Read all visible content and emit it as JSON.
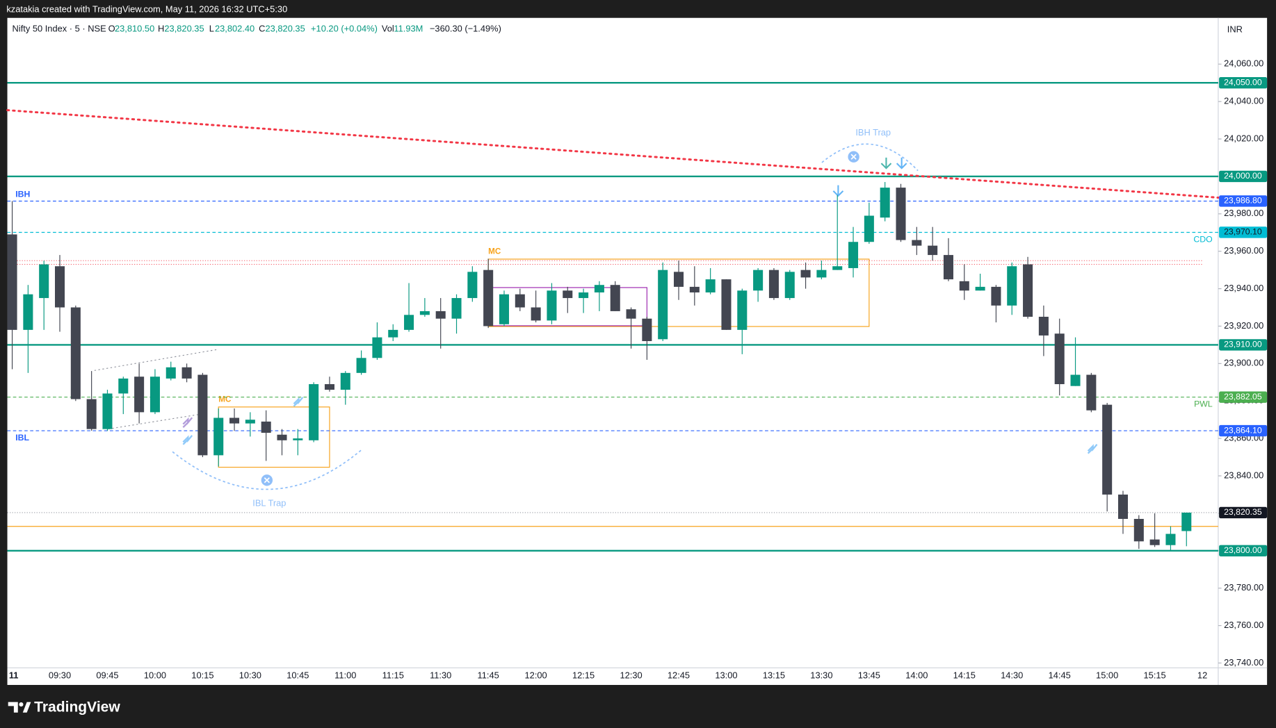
{
  "header": {
    "credit": "kzatakia created with TradingView.com, May 11, 2026 16:32 UTC+5:30"
  },
  "legend": {
    "symbol": "Nifty 50 Index · 5 · NSE",
    "fields": [
      {
        "key": "O",
        "value": "23,810.50"
      },
      {
        "key": "H",
        "value": "23,820.35"
      },
      {
        "key": "L",
        "value": "23,802.40"
      },
      {
        "key": "C",
        "value": "23,820.35"
      }
    ],
    "change": "+10.20 (+0.04%)",
    "volume_key": "Vol",
    "volume": "11.93M",
    "day_change": "−360.30 (−1.49%)"
  },
  "annotations": [
    {
      "text": "IBL Trap"
    },
    {
      "text": "IBH Trap"
    }
  ],
  "footer": {
    "brand": "TradingView"
  },
  "chart_data": {
    "type": "candlestick",
    "currency": "INR",
    "up_color": "#089981",
    "down_color": "#434651",
    "categories": [
      "11",
      null,
      null,
      "09:30",
      null,
      null,
      "09:45",
      null,
      null,
      "10:00",
      null,
      null,
      "10:15",
      null,
      null,
      "10:30",
      null,
      null,
      "10:45",
      null,
      null,
      "11:00",
      null,
      null,
      "11:15",
      null,
      null,
      "11:30",
      null,
      null,
      "11:45",
      null,
      null,
      "12:00",
      null,
      null,
      "12:15",
      null,
      null,
      "12:30",
      null,
      null,
      "12:45",
      null,
      null,
      "13:00",
      null,
      null,
      "13:15",
      null,
      null,
      "13:30",
      null,
      null,
      "13:45",
      null,
      null,
      "14:00",
      null,
      null,
      "14:15",
      null,
      null,
      "14:30",
      null,
      null,
      "14:45",
      null,
      null,
      "15:00",
      null,
      null,
      "15:15",
      null,
      null
    ],
    "next_session_label": "12",
    "open": [
      23969,
      23918,
      23935,
      23952,
      23930,
      23881,
      23865,
      23884,
      23893,
      23874,
      23892,
      23898,
      23894,
      23851,
      23871,
      23868,
      23869,
      23862,
      23859,
      23859,
      23889,
      23886,
      23895,
      23903,
      23914,
      23918,
      23926,
      23928,
      23924,
      23935,
      23950,
      23921,
      23937,
      23930,
      23923,
      23939,
      23935,
      23938,
      23942,
      23929,
      23924,
      23913,
      23949,
      23941,
      23938,
      23945,
      23918,
      23939,
      23950,
      23935,
      23950,
      23946,
      23950,
      23951,
      23965,
      23978,
      23994,
      23966,
      23963,
      23958,
      23944,
      23939,
      23941,
      23931,
      23953,
      23925,
      23916,
      23888,
      23894,
      23878,
      23830,
      23817,
      23806,
      23803,
      23810.5
    ],
    "high": [
      23986.8,
      23942,
      23955,
      23958,
      23931,
      23896,
      23886,
      23893,
      23900,
      23897,
      23901,
      23900,
      23895,
      23876,
      23876,
      23874,
      23875,
      23865,
      23865,
      23890,
      23893,
      23896,
      23907,
      23922,
      23921,
      23943,
      23935,
      23935,
      23937,
      23952,
      23956,
      23939,
      23940,
      23939,
      23943,
      23941,
      23940,
      23944,
      23944,
      23930,
      23925,
      23954,
      23955,
      23952,
      23951,
      23945,
      23940,
      23951,
      23951,
      23950,
      23954,
      23955,
      23990,
      23973,
      23986,
      23997,
      23996,
      23973,
      23973,
      23967,
      23953,
      23948,
      23942,
      23954,
      23957,
      23931,
      23924,
      23914,
      23895,
      23879,
      23832,
      23819,
      23820,
      23813,
      23820.35
    ],
    "low": [
      23897,
      23895,
      23918,
      23917,
      23880,
      23864.1,
      23864,
      23873,
      23868,
      23873,
      23891,
      23890,
      23850,
      23845,
      23864,
      23861,
      23848,
      23851,
      23851,
      23858,
      23885,
      23878,
      23894,
      23902,
      23912,
      23917,
      23925,
      23908,
      23916,
      23933,
      23919,
      23920,
      23928,
      23922,
      23921,
      23927,
      23927,
      23928,
      23928,
      23908,
      23902,
      23912,
      23934,
      23931,
      23937,
      23918,
      23905,
      23933,
      23934,
      23934,
      23940,
      23945,
      23950,
      23946,
      23964,
      23976,
      23965,
      23958,
      23955,
      23944,
      23934,
      23939,
      23922,
      23926,
      23924,
      23904,
      23883,
      23888,
      23874,
      23821,
      23809,
      23801,
      23802,
      23800,
      23802.4
    ],
    "close": [
      23918,
      23937,
      23953,
      23930,
      23881,
      23865,
      23884,
      23892,
      23874,
      23893,
      23898,
      23892,
      23851,
      23871,
      23868,
      23870,
      23863,
      23859,
      23860,
      23889,
      23886,
      23895,
      23903,
      23914,
      23918,
      23926,
      23928,
      23924,
      23935,
      23949,
      23920,
      23937,
      23930,
      23923,
      23939,
      23935,
      23938,
      23942,
      23928,
      23924,
      23912,
      23950,
      23941,
      23938,
      23945,
      23918,
      23939,
      23950,
      23935,
      23949,
      23946,
      23950,
      23952,
      23965,
      23979,
      23994,
      23966,
      23963,
      23958,
      23945,
      23939,
      23941,
      23931,
      23952,
      23925,
      23915,
      23889,
      23894,
      23875,
      23830,
      23817,
      23805,
      23803,
      23809,
      23820.35
    ],
    "ylim": [
      23737.4,
      24084.7
    ],
    "yticks": [
      {
        "value": 23740,
        "label": "23,740.00"
      },
      {
        "value": 23760,
        "label": "23,760.00"
      },
      {
        "value": 23780,
        "label": "23,780.00"
      },
      {
        "value": 23800,
        "label": "23,800.00"
      },
      {
        "value": 23820,
        "label": "23,820.00"
      },
      {
        "value": 23840,
        "label": "23,840.00"
      },
      {
        "value": 23860,
        "label": "23,860.00"
      },
      {
        "value": 23880,
        "label": "23,880.00"
      },
      {
        "value": 23900,
        "label": "23,900.00"
      },
      {
        "value": 23920,
        "label": "23,920.00"
      },
      {
        "value": 23940,
        "label": "23,940.00"
      },
      {
        "value": 23960,
        "label": "23,960.00"
      },
      {
        "value": 23980,
        "label": "23,980.00"
      },
      {
        "value": 24000,
        "label": "24,000.00"
      },
      {
        "value": 24020,
        "label": "24,020.00"
      },
      {
        "value": 24040,
        "label": "24,040.00"
      },
      {
        "value": 24060,
        "label": "24,060.00"
      }
    ],
    "grid": false,
    "levels": [
      {
        "value": 24050,
        "value_label": "24,050.00",
        "color": "#089981",
        "style": "solid"
      },
      {
        "value": 24000,
        "value_label": "24,000.00",
        "color": "#089981",
        "style": "solid"
      },
      {
        "value": 23986.8,
        "value_label": "23,986.80",
        "name": "IBH",
        "name_side": "left",
        "name_pos": "above",
        "color": "#2962ff",
        "style": "dashed"
      },
      {
        "value": 23970.1,
        "value_label": "23,970.10",
        "name": "CDO",
        "name_side": "right",
        "name_pos": "below",
        "color": "#00bcd4",
        "text_color": "#131722",
        "style": "dashed"
      },
      {
        "value": 23955,
        "color": "#f23645",
        "style": "dotted",
        "end": 75
      },
      {
        "value": 23953,
        "color": "#f23645",
        "style": "dotted",
        "end": 75
      },
      {
        "value": 23910,
        "value_label": "23,910.00",
        "color": "#089981",
        "style": "solid"
      },
      {
        "value": 23882.05,
        "value_label": "23,882.05",
        "name": "PWL",
        "name_side": "right",
        "name_pos": "below",
        "color": "#4caf50",
        "style": "dashed"
      },
      {
        "value": 23864.1,
        "value_label": "23,864.10",
        "name": "IBL",
        "name_side": "left",
        "name_pos": "below",
        "color": "#2962ff",
        "style": "dashed"
      },
      {
        "value": 23820.35,
        "value_label": "23,820.35",
        "color": "#131722",
        "style": "price"
      },
      {
        "value": 23813,
        "color": "#f7a21b",
        "style": "thin"
      },
      {
        "value": 23800,
        "value_label": "23,800.00",
        "color": "#089981",
        "style": "solid"
      }
    ],
    "boxes": [
      {
        "label": "MC",
        "start": 13,
        "end": 20,
        "top": 23876.8,
        "bottom": 23844.6,
        "color": "#f7a21b"
      },
      {
        "label": "MC",
        "start": 30,
        "end": 54,
        "top": 23955.8,
        "bottom": 23919.8,
        "color": "#f7a21b"
      },
      {
        "start": 30,
        "end": 40,
        "top": 23940.6,
        "bottom": 23920.2,
        "color": "#9c27b0"
      }
    ],
    "trendline": {
      "points": [
        [
          0,
          24035.2
        ],
        [
          56,
          24000.9
        ]
      ],
      "color": "#f23645"
    }
  }
}
